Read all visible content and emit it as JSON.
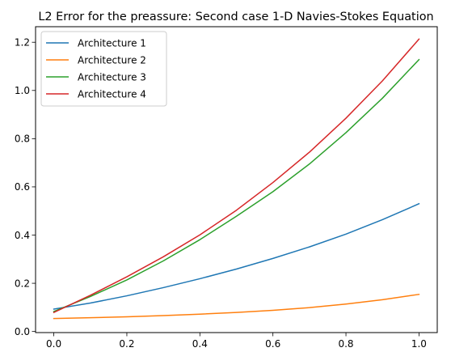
{
  "chart_data": {
    "type": "line",
    "title": "L2 Error for the preassure: Second case 1-D Navies-Stokes Equation",
    "xlabel": "",
    "ylabel": "",
    "xlim": [
      -0.05,
      1.05
    ],
    "ylim": [
      -0.0045,
      1.2645
    ],
    "xticks": [
      0.0,
      0.2,
      0.4,
      0.6,
      0.8,
      1.0
    ],
    "xtick_labels": [
      "0.0",
      "0.2",
      "0.4",
      "0.6",
      "0.8",
      "1.0"
    ],
    "yticks": [
      0.0,
      0.2,
      0.4,
      0.6,
      0.8,
      1.0,
      1.2
    ],
    "ytick_labels": [
      "0.0",
      "0.2",
      "0.4",
      "0.6",
      "0.8",
      "1.0",
      "1.2"
    ],
    "grid": false,
    "legend_position": "top-left",
    "x": [
      0.0,
      0.1,
      0.2,
      0.3,
      0.4,
      0.5,
      0.6,
      0.7,
      0.8,
      0.9,
      1.0
    ],
    "series": [
      {
        "name": "Architecture 1",
        "color": "#1f77b4",
        "values": [
          0.093,
          0.118,
          0.148,
          0.182,
          0.219,
          0.259,
          0.303,
          0.351,
          0.404,
          0.464,
          0.53
        ]
      },
      {
        "name": "Architecture 2",
        "color": "#ff7f0e",
        "values": [
          0.054,
          0.057,
          0.061,
          0.066,
          0.072,
          0.079,
          0.088,
          0.099,
          0.114,
          0.132,
          0.154
        ]
      },
      {
        "name": "Architecture 3",
        "color": "#2ca02c",
        "values": [
          0.083,
          0.145,
          0.214,
          0.293,
          0.381,
          0.478,
          0.58,
          0.695,
          0.825,
          0.968,
          1.128
        ]
      },
      {
        "name": "Architecture 4",
        "color": "#d62728",
        "values": [
          0.079,
          0.15,
          0.227,
          0.31,
          0.401,
          0.503,
          0.618,
          0.744,
          0.885,
          1.04,
          1.213
        ]
      }
    ]
  }
}
